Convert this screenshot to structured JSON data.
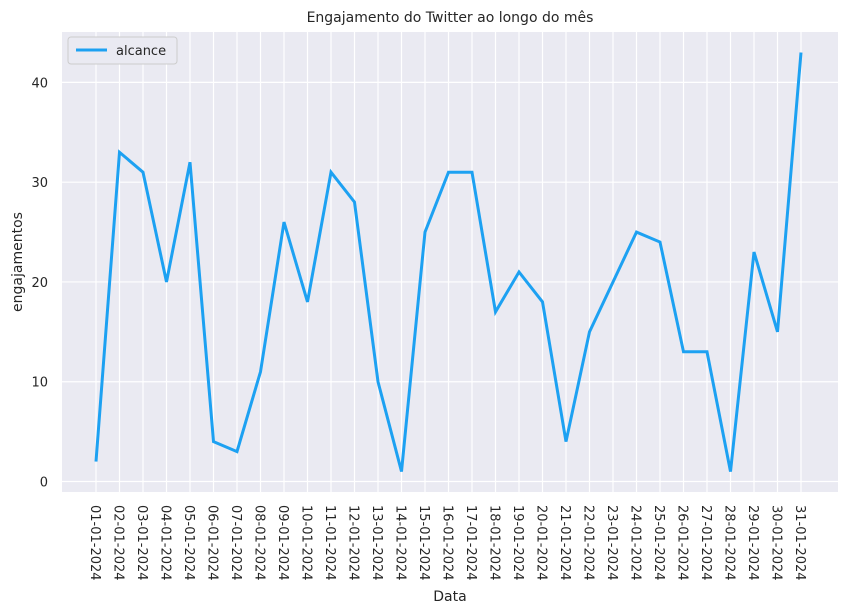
{
  "chart_data": {
    "type": "line",
    "title": "Engajamento do Twitter ao longo do mês",
    "xlabel": "Data",
    "ylabel": "engajamentos",
    "categories": [
      "01-01-2024",
      "02-01-2024",
      "03-01-2024",
      "04-01-2024",
      "05-01-2024",
      "06-01-2024",
      "07-01-2024",
      "08-01-2024",
      "09-01-2024",
      "10-01-2024",
      "11-01-2024",
      "12-01-2024",
      "13-01-2024",
      "14-01-2024",
      "15-01-2024",
      "16-01-2024",
      "17-01-2024",
      "18-01-2024",
      "19-01-2024",
      "20-01-2024",
      "21-01-2024",
      "22-01-2024",
      "23-01-2024",
      "24-01-2024",
      "25-01-2024",
      "26-01-2024",
      "27-01-2024",
      "28-01-2024",
      "29-01-2024",
      "30-01-2024",
      "31-01-2024"
    ],
    "series": [
      {
        "name": "alcance",
        "color": "#1da1f2",
        "values": [
          2,
          33,
          31,
          20,
          32,
          4,
          3,
          11,
          26,
          18,
          31,
          28,
          10,
          1,
          25,
          31,
          31,
          17,
          21,
          18,
          4,
          15,
          20,
          25,
          24,
          13,
          13,
          1,
          23,
          15,
          43
        ]
      }
    ],
    "ylim": [
      -1.05,
      45.05
    ],
    "yticks": [
      0,
      10,
      20,
      30,
      40
    ],
    "grid": true,
    "legend_position": "upper-left",
    "background": "#eaeaf2"
  }
}
